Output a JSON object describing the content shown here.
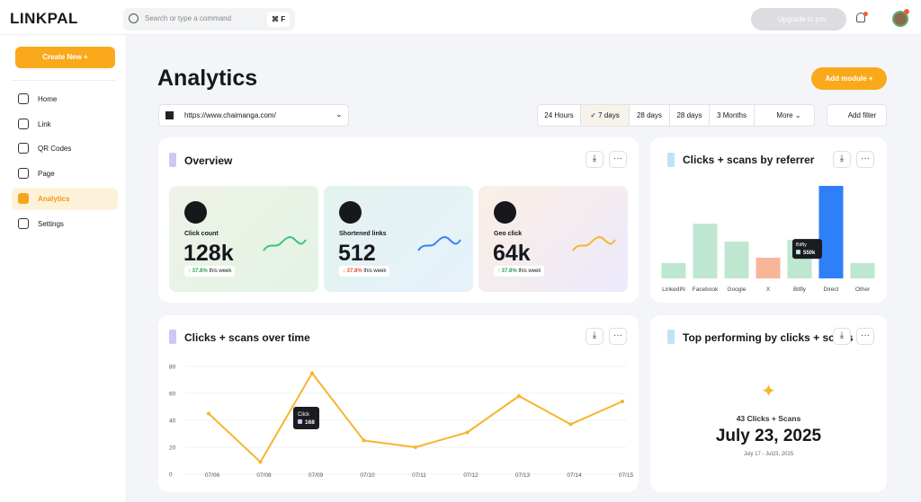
{
  "header": {
    "logo": "LINKPAL",
    "search_placeholder": "Search or type a command",
    "shortcut": "⌘ F",
    "upgrade": "Upgrade to pro"
  },
  "sidebar": {
    "create": "Create New",
    "nav": [
      "Home",
      "Link",
      "QR Codes",
      "Page",
      "Analytics",
      "Settings"
    ],
    "active": 4
  },
  "main": {
    "title": "Analytics",
    "add_module": "Add module",
    "url": "https://www.chaimanga.com/",
    "ranges": [
      "24 Hours",
      "7 days",
      "28 days",
      "28 days",
      "3 Months"
    ],
    "selected_range": 1,
    "more": "More",
    "add_filter": "Add filter"
  },
  "overview": {
    "title": "Overview",
    "cards": [
      {
        "label": "Click count",
        "value": "128k",
        "change": "37.8%",
        "trend": "up",
        "period": "this week"
      },
      {
        "label": "Shortened links",
        "value": "512",
        "change": "37.8%",
        "trend": "down",
        "period": "this week"
      },
      {
        "label": "Geo click",
        "value": "64k",
        "change": "37.8%",
        "trend": "up",
        "period": "this week"
      }
    ]
  },
  "chart_data": [
    {
      "type": "bar",
      "title": "Clicks + scans by referrer",
      "categories": [
        "LinkedIN",
        "Facebook",
        "Google",
        "X",
        "Bitfly",
        "Direct",
        "Other"
      ],
      "values": [
        220000,
        780000,
        525000,
        295000,
        550000,
        1320000,
        220000
      ],
      "value_labels": [
        null,
        null,
        null,
        null,
        "550k",
        null,
        null
      ],
      "colors": [
        "#bfe6d0",
        "#bfe6d0",
        "#bfe6d0",
        "#f8b699",
        "#bfe6d0",
        "#2f7ff8",
        "#bfe6d0"
      ]
    },
    {
      "type": "line",
      "title": "Clicks + scans over time",
      "categories": [
        "07/06",
        "07/08",
        "07/09",
        "07/10",
        "07/11",
        "07/12",
        "07/13",
        "07/14",
        "07/15"
      ],
      "series": [
        {
          "name": "Click",
          "color": "#f7b52c",
          "values": [
            45,
            9,
            75,
            25,
            20,
            31,
            58,
            37,
            54
          ]
        }
      ],
      "ylim": [
        0,
        80
      ],
      "yticks": [
        0,
        20,
        40,
        60,
        80
      ],
      "grid": true,
      "tooltip_value": "168"
    }
  ],
  "top": {
    "title": "Top performing by clicks + scans",
    "count": "43 Clicks + Scans",
    "date": "July 23, 2025",
    "range": "July 17 - Jul23, 2025"
  }
}
